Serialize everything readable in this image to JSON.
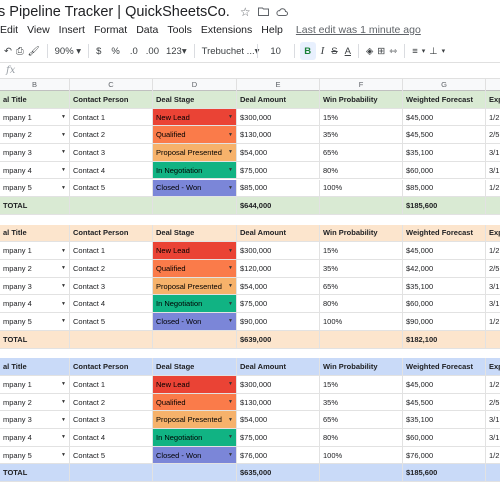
{
  "app": {
    "title": "s Pipeline Tracker | QuickSheetsCo.",
    "last_edit": "Last edit was 1 minute ago"
  },
  "title_icons": [
    "star-icon",
    "folder-move-icon",
    "cloud-saved-icon"
  ],
  "menu": [
    "Edit",
    "View",
    "Insert",
    "Format",
    "Data",
    "Tools",
    "Extensions",
    "Help"
  ],
  "toolbar": {
    "zoom": "90%",
    "currency": "$",
    "percent": "%",
    "decimal_decrease": ".0",
    "decimal_increase": ".00",
    "number_format": "123",
    "font": "Trebuchet ...",
    "font_size": "10",
    "bold": "B",
    "italic": "I",
    "strike": "S",
    "text_color": "A"
  },
  "formula_bar": {
    "fx": "fx"
  },
  "columns": [
    "B",
    "C",
    "D",
    "E",
    "F",
    "G"
  ],
  "headers": [
    "al Title",
    "Contact Person",
    "Deal Stage",
    "Deal Amount",
    "Win Probability",
    "Weighted Forecast",
    "Exp"
  ],
  "stage_colors": {
    "New Lead": "#ea4335",
    "Qualified": "#fa7b4a",
    "Proposal Presented": "#f6b26b",
    "In Negotiation": "#11b383",
    "Closed - Won": "#7b86d8"
  },
  "tables": [
    {
      "theme": {
        "header_bg": "#d9ead3",
        "total_bg": "#d9ead3"
      },
      "rows": [
        {
          "title": "mpany 1",
          "contact": "Contact 1",
          "stage": "New Lead",
          "amount": "$300,000",
          "prob": "15%",
          "forecast": "$45,000",
          "exp": "1/2"
        },
        {
          "title": "mpany 2",
          "contact": "Contact 2",
          "stage": "Qualified",
          "amount": "$130,000",
          "prob": "35%",
          "forecast": "$45,500",
          "exp": "2/5"
        },
        {
          "title": "mpany 3",
          "contact": "Contact 3",
          "stage": "Proposal Presented",
          "amount": "$54,000",
          "prob": "65%",
          "forecast": "$35,100",
          "exp": "3/1"
        },
        {
          "title": "mpany 4",
          "contact": "Contact 4",
          "stage": "In Negotiation",
          "amount": "$75,000",
          "prob": "80%",
          "forecast": "$60,000",
          "exp": "3/1"
        },
        {
          "title": "mpany 5",
          "contact": "Contact 5",
          "stage": "Closed - Won",
          "amount": "$85,000",
          "prob": "100%",
          "forecast": "$85,000",
          "exp": "1/2"
        }
      ],
      "total": {
        "label": "TOTAL",
        "amount": "$644,000",
        "forecast": "$185,600"
      }
    },
    {
      "theme": {
        "header_bg": "#fce5cd",
        "total_bg": "#fce5cd"
      },
      "rows": [
        {
          "title": "mpany 1",
          "contact": "Contact 1",
          "stage": "New Lead",
          "amount": "$300,000",
          "prob": "15%",
          "forecast": "$45,000",
          "exp": "1/2"
        },
        {
          "title": "mpany 2",
          "contact": "Contact 2",
          "stage": "Qualified",
          "amount": "$120,000",
          "prob": "35%",
          "forecast": "$42,000",
          "exp": "2/5"
        },
        {
          "title": "mpany 3",
          "contact": "Contact 3",
          "stage": "Proposal Presented",
          "amount": "$54,000",
          "prob": "65%",
          "forecast": "$35,100",
          "exp": "3/1"
        },
        {
          "title": "mpany 4",
          "contact": "Contact 4",
          "stage": "In Negotiation",
          "amount": "$75,000",
          "prob": "80%",
          "forecast": "$60,000",
          "exp": "3/1"
        },
        {
          "title": "mpany 5",
          "contact": "Contact 5",
          "stage": "Closed - Won",
          "amount": "$90,000",
          "prob": "100%",
          "forecast": "$90,000",
          "exp": "1/2"
        }
      ],
      "total": {
        "label": "TOTAL",
        "amount": "$639,000",
        "forecast": "$182,100"
      }
    },
    {
      "theme": {
        "header_bg": "#c9daf8",
        "total_bg": "#c9daf8"
      },
      "rows": [
        {
          "title": "mpany 1",
          "contact": "Contact 1",
          "stage": "New Lead",
          "amount": "$300,000",
          "prob": "15%",
          "forecast": "$45,000",
          "exp": "1/2"
        },
        {
          "title": "mpany 2",
          "contact": "Contact 2",
          "stage": "Qualified",
          "amount": "$130,000",
          "prob": "35%",
          "forecast": "$45,500",
          "exp": "2/5"
        },
        {
          "title": "mpany 3",
          "contact": "Contact 3",
          "stage": "Proposal Presented",
          "amount": "$54,000",
          "prob": "65%",
          "forecast": "$35,100",
          "exp": "3/1"
        },
        {
          "title": "mpany 4",
          "contact": "Contact 4",
          "stage": "In Negotiation",
          "amount": "$75,000",
          "prob": "80%",
          "forecast": "$60,000",
          "exp": "3/1"
        },
        {
          "title": "mpany 5",
          "contact": "Contact 5",
          "stage": "Closed - Won",
          "amount": "$76,000",
          "prob": "100%",
          "forecast": "$76,000",
          "exp": "1/2"
        }
      ],
      "total": {
        "label": "TOTAL",
        "amount": "$635,000",
        "forecast": "$185,600"
      }
    }
  ]
}
